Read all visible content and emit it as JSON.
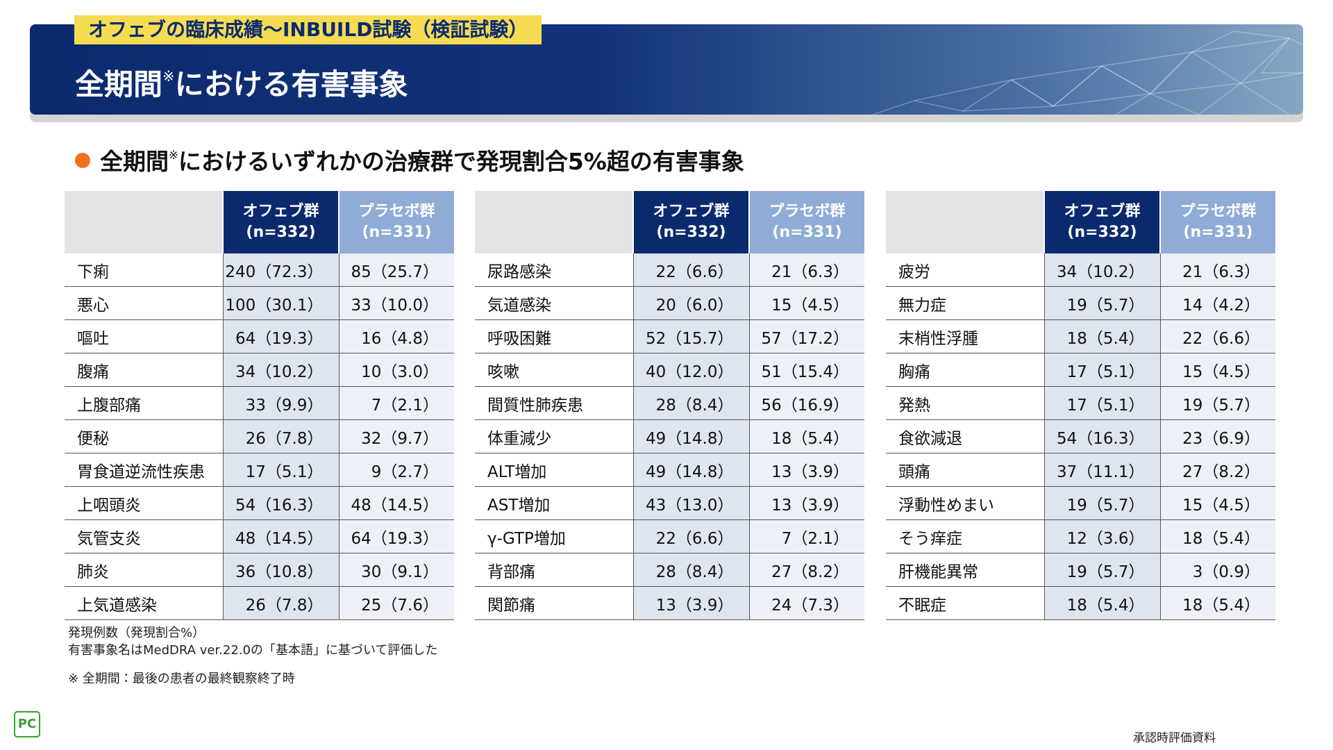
{
  "header": {
    "tag": "オフェブの臨床成績〜INBUILD試験（検証試験）",
    "title_main": "全期間",
    "title_mark": "※",
    "title_rest": "における有害事象"
  },
  "subtitle": {
    "main": "全期間",
    "mark": "※",
    "rest": "におけるいずれかの治療群で発現割合5%超の有害事象"
  },
  "columns": [
    {
      "name": "オフェブ群",
      "n": "(n=332)"
    },
    {
      "name": "プラセボ群",
      "n": "(n=331)"
    }
  ],
  "tables": [
    {
      "rows": [
        [
          "下痢",
          "240（72.3）",
          "85（25.7）"
        ],
        [
          "悪心",
          "100（30.1）",
          "33（10.0）"
        ],
        [
          "嘔吐",
          "64（19.3）",
          "16（4.8）"
        ],
        [
          "腹痛",
          "34（10.2）",
          "10（3.0）"
        ],
        [
          "上腹部痛",
          "33（9.9）",
          "7（2.1）"
        ],
        [
          "便秘",
          "26（7.8）",
          "32（9.7）"
        ],
        [
          "胃食道逆流性疾患",
          "17（5.1）",
          "9（2.7）"
        ],
        [
          "上咽頭炎",
          "54（16.3）",
          "48（14.5）"
        ],
        [
          "気管支炎",
          "48（14.5）",
          "64（19.3）"
        ],
        [
          "肺炎",
          "36（10.8）",
          "30（9.1）"
        ],
        [
          "上気道感染",
          "26（7.8）",
          "25（7.6）"
        ]
      ]
    },
    {
      "rows": [
        [
          "尿路感染",
          "22（6.6）",
          "21（6.3）"
        ],
        [
          "気道感染",
          "20（6.0）",
          "15（4.5）"
        ],
        [
          "呼吸困難",
          "52（15.7）",
          "57（17.2）"
        ],
        [
          "咳嗽",
          "40（12.0）",
          "51（15.4）"
        ],
        [
          "間質性肺疾患",
          "28（8.4）",
          "56（16.9）"
        ],
        [
          "体重減少",
          "49（14.8）",
          "18（5.4）"
        ],
        [
          "ALT増加",
          "49（14.8）",
          "13（3.9）"
        ],
        [
          "AST増加",
          "43（13.0）",
          "13（3.9）"
        ],
        [
          "γ-GTP増加",
          "22（6.6）",
          "7（2.1）"
        ],
        [
          "背部痛",
          "28（8.4）",
          "27（8.2）"
        ],
        [
          "関節痛",
          "13（3.9）",
          "24（7.3）"
        ]
      ]
    },
    {
      "rows": [
        [
          "疲労",
          "34（10.2）",
          "21（6.3）"
        ],
        [
          "無力症",
          "19（5.7）",
          "14（4.2）"
        ],
        [
          "末梢性浮腫",
          "18（5.4）",
          "22（6.6）"
        ],
        [
          "胸痛",
          "17（5.1）",
          "15（4.5）"
        ],
        [
          "発熱",
          "17（5.1）",
          "19（5.7）"
        ],
        [
          "食欲減退",
          "54（16.3）",
          "23（6.9）"
        ],
        [
          "頭痛",
          "37（11.1）",
          "27（8.2）"
        ],
        [
          "浮動性めまい",
          "19（5.7）",
          "15（4.5）"
        ],
        [
          "そう痒症",
          "12（3.6）",
          "18（5.4）"
        ],
        [
          "肝機能異常",
          "19（5.7）",
          "3（0.9）"
        ],
        [
          "不眠症",
          "18（5.4）",
          "18（5.4）"
        ]
      ]
    }
  ],
  "footnotes": [
    "発現例数（発現割合%）",
    "有害事象名はMedDRA ver.22.0の「基本語」に基づいて評価した",
    "※ 全期間：最後の患者の最終観察終了時"
  ],
  "logo": "PC",
  "approval": "承認時評価資料"
}
